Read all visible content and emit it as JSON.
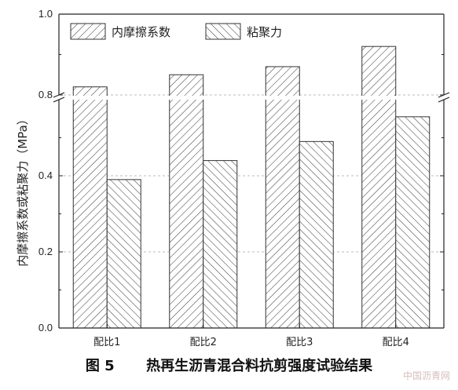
{
  "chart_data": {
    "type": "bar",
    "categories": [
      "配比1",
      "配比2",
      "配比3",
      "配比4"
    ],
    "series": [
      {
        "name": "内摩擦系数",
        "values": [
          0.82,
          0.85,
          0.87,
          0.92
        ]
      },
      {
        "name": "粘聚力",
        "values": [
          0.39,
          0.44,
          0.49,
          0.555
        ]
      }
    ],
    "ylabel": "内摩擦系数或粘聚力（MPa）",
    "yticks_lower": [
      "0.0",
      "0.2",
      "0.4"
    ],
    "yticks_upper": [
      "0.8",
      "1.0"
    ],
    "axis_break": true,
    "ylim": [
      0,
      1.0
    ],
    "grid": "dashed horizontal",
    "legend_position": "top"
  },
  "caption": {
    "number": "图 5",
    "title": "热再生沥青混合料抗剪强度试验结果"
  },
  "watermark": "中国沥青网"
}
